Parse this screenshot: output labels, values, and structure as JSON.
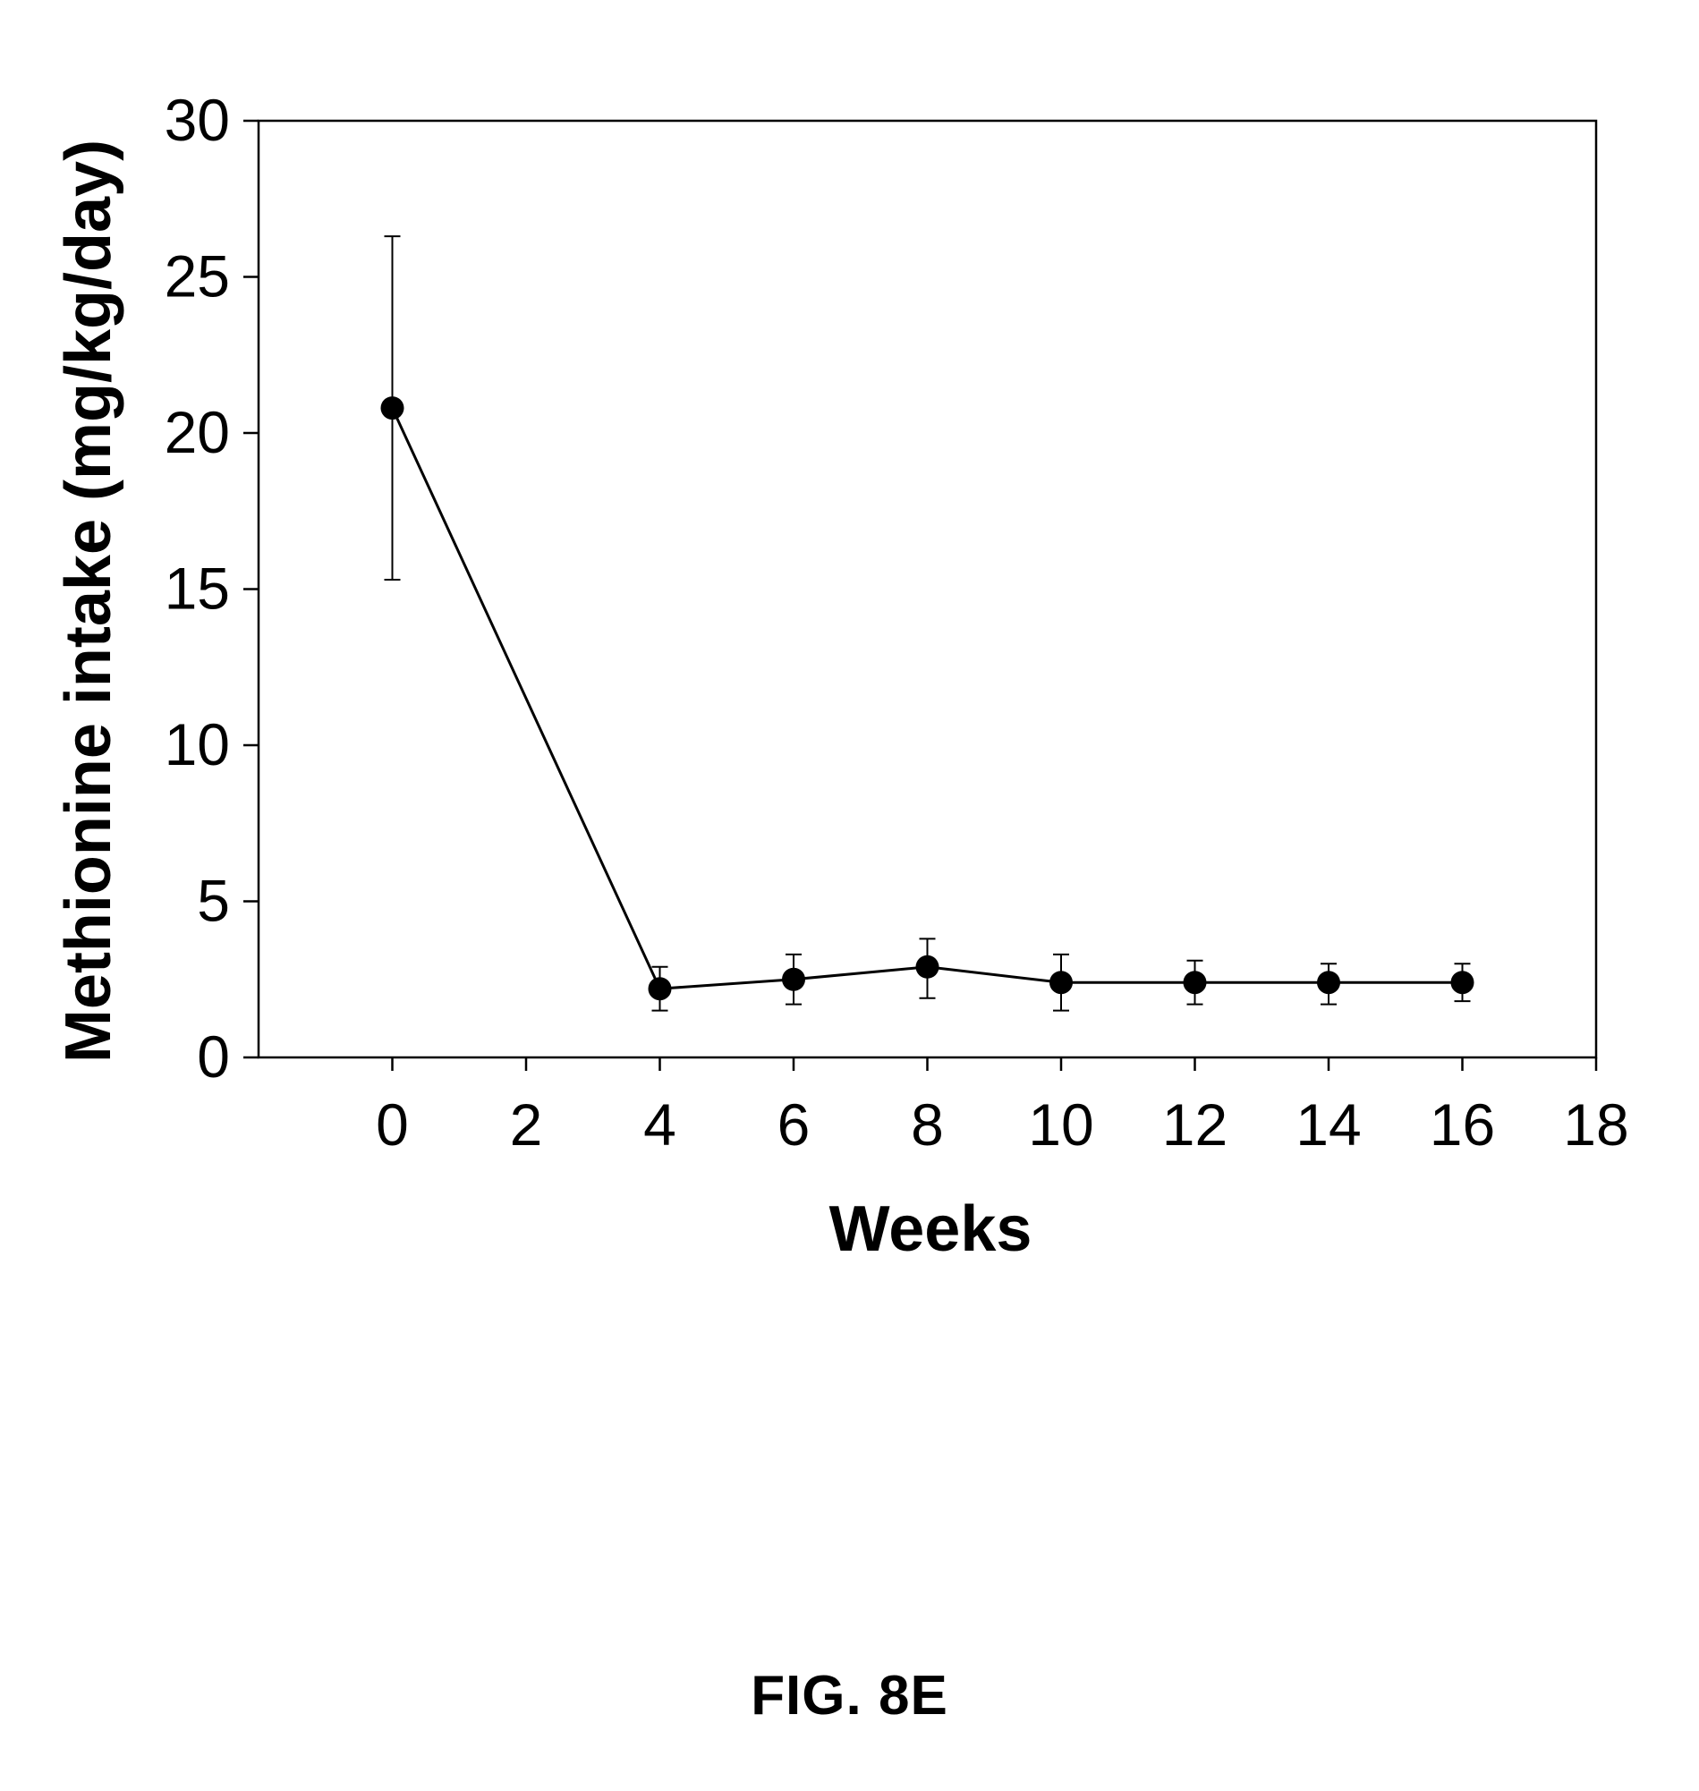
{
  "figure": {
    "caption": "FIG. 8E"
  },
  "chart_data": {
    "type": "line",
    "title": "",
    "xlabel": "Weeks",
    "ylabel": "Methionine intake (mg/kg/day)",
    "xlim": [
      -2,
      18
    ],
    "ylim": [
      0,
      30
    ],
    "x_ticks": [
      0,
      2,
      4,
      6,
      8,
      10,
      12,
      14,
      16,
      18
    ],
    "y_ticks": [
      0,
      5,
      10,
      15,
      20,
      25,
      30
    ],
    "grid": false,
    "legend": "none",
    "marker": "filled-circle",
    "colors": {
      "line": "#000000",
      "marker": "#000000",
      "axes": "#000000"
    },
    "series": [
      {
        "x": [
          0,
          4,
          6,
          8,
          10,
          12,
          14,
          16
        ],
        "y": [
          20.8,
          2.2,
          2.5,
          2.9,
          2.4,
          2.4,
          2.4,
          2.4
        ],
        "error_high": [
          26.3,
          2.9,
          3.3,
          3.8,
          3.3,
          3.1,
          3.0,
          3.0
        ],
        "error_low": [
          15.3,
          1.5,
          1.7,
          1.9,
          1.5,
          1.7,
          1.7,
          1.8
        ]
      }
    ]
  }
}
